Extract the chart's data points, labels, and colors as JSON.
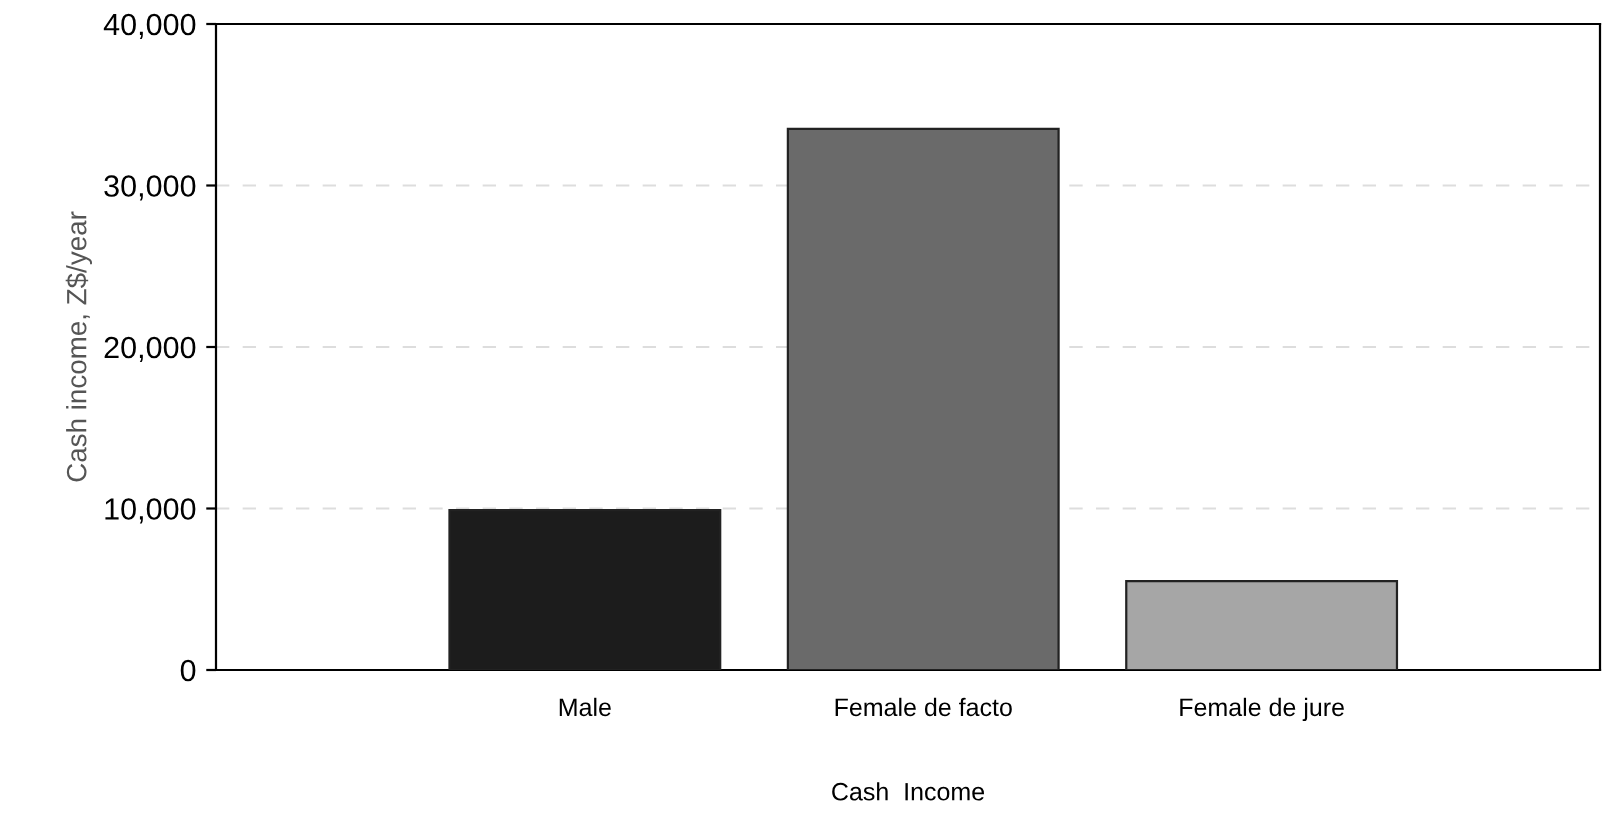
{
  "chart_data": {
    "type": "bar",
    "xlabel": "Cash  Income",
    "ylabel": "Cash income, Z$/year",
    "categories": [
      "Male",
      "Female de facto",
      "Female de jure"
    ],
    "values": [
      9900,
      33500,
      5500
    ],
    "colors": [
      "#1c1c1c",
      "#6a6a6a",
      "#a6a6a6"
    ],
    "ylim": [
      0,
      40000
    ],
    "yticks": [
      {
        "value": 0,
        "label": "0"
      },
      {
        "value": 10000,
        "label": "10,000"
      },
      {
        "value": 20000,
        "label": "20,000"
      },
      {
        "value": 30000,
        "label": "30,000"
      },
      {
        "value": 40000,
        "label": "40,000"
      }
    ],
    "grid": "y"
  }
}
